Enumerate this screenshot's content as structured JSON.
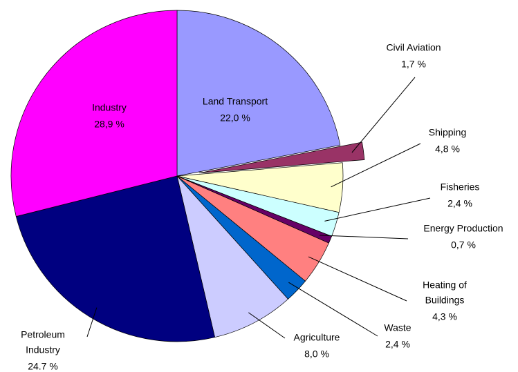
{
  "chart_data": {
    "type": "pie",
    "categories": [
      [
        "Land Transport"
      ],
      [
        "Civil Aviation"
      ],
      [
        "Shipping"
      ],
      [
        "Fisheries"
      ],
      [
        "Energy Production"
      ],
      [
        "Heating of",
        "Buildings"
      ],
      [
        "Waste"
      ],
      [
        "Agriculture"
      ],
      [
        "Petroleum",
        "Industry"
      ],
      [
        "Industry"
      ]
    ],
    "values": [
      22.0,
      1.7,
      4.8,
      2.4,
      0.7,
      4.3,
      2.4,
      8.0,
      24.7,
      28.9
    ],
    "value_labels": [
      "22,0 %",
      "1,7 %",
      "4,8 %",
      "2,4 %",
      "0,7 %",
      "4,3 %",
      "2,4 %",
      "8,0 %",
      "24.7 %",
      "28,9 %"
    ],
    "colors": [
      "#9999ff",
      "#993366",
      "#ffffcc",
      "#ccffff",
      "#660066",
      "#ff8080",
      "#0066cc",
      "#ccccff",
      "#000080",
      "#ff00ff"
    ],
    "exploded_index": 1
  }
}
